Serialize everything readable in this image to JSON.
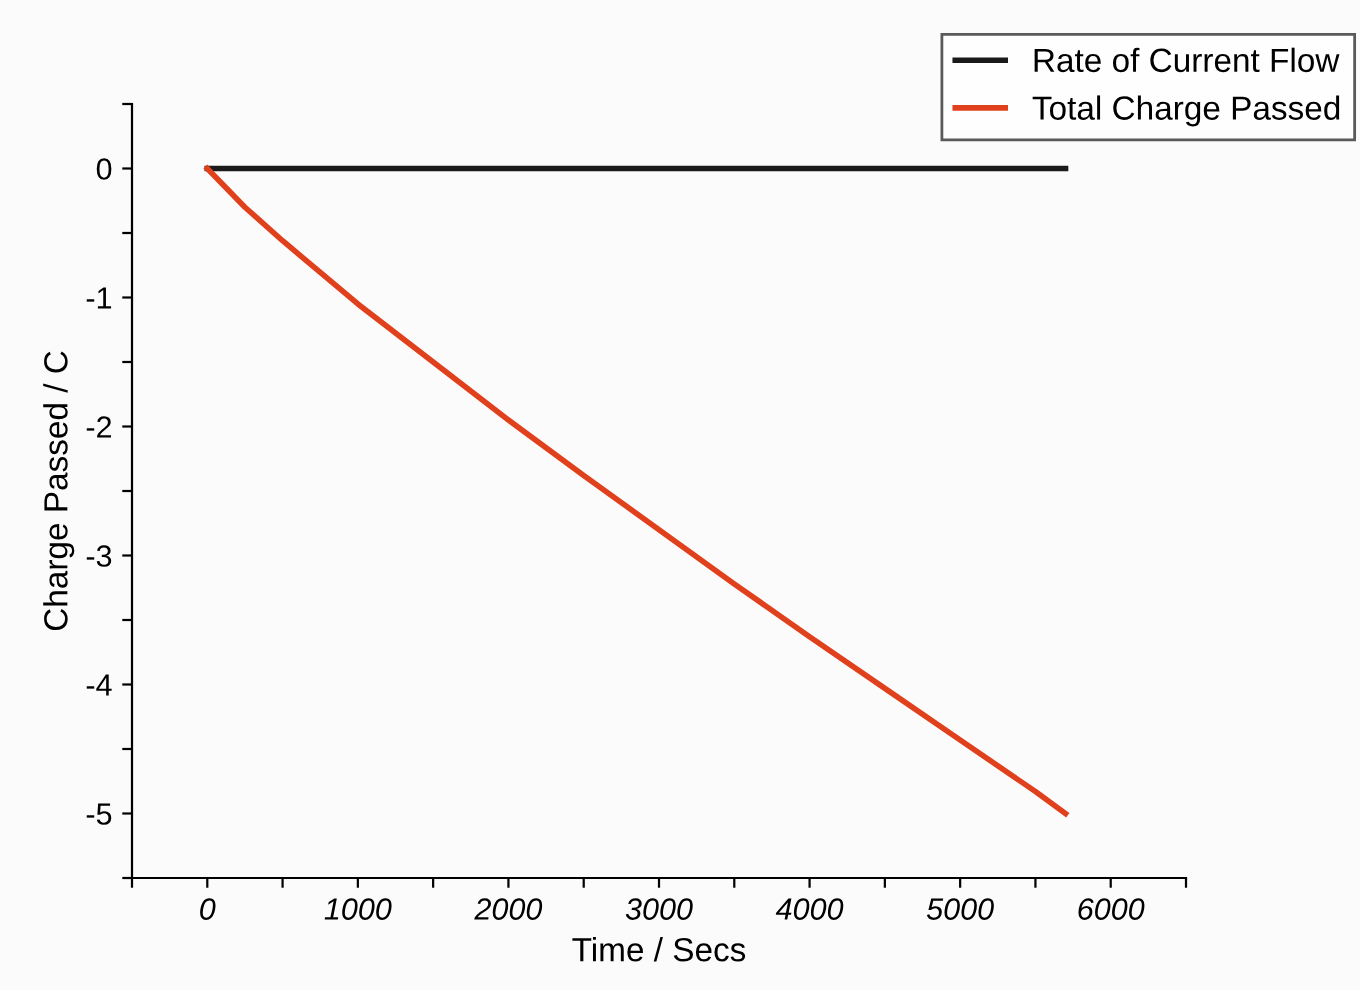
{
  "chart_data": {
    "type": "line",
    "xlabel": "Time / Secs",
    "ylabel": "Charge Passed / C",
    "xlim": [
      -500,
      6500
    ],
    "xticks": [
      {
        "value": -500,
        "label": null
      },
      0,
      {
        "value": 500,
        "label": null
      },
      1000,
      {
        "value": 1500,
        "label": null
      },
      2000,
      {
        "value": 2500,
        "label": null
      },
      3000,
      {
        "value": 3500,
        "label": null
      },
      4000,
      {
        "value": 4500,
        "label": null
      },
      5000,
      {
        "value": 5500,
        "label": null
      },
      6000,
      {
        "value": 6500,
        "label": null
      }
    ],
    "ylim": [
      -5.5,
      0.5
    ],
    "yticks": [
      {
        "value": -5.5,
        "label": null
      },
      -5,
      {
        "value": -4.5,
        "label": null
      },
      -4,
      {
        "value": -3.5,
        "label": null
      },
      -3,
      {
        "value": -2.5,
        "label": null
      },
      -2,
      {
        "value": -1.5,
        "label": null
      },
      -1,
      {
        "value": -0.5,
        "label": null
      },
      0,
      {
        "value": 0.5,
        "label": null
      }
    ],
    "legend": "top right",
    "grid": false,
    "series": [
      {
        "name": "Rate of Current Flow",
        "color": "#1a1a1a",
        "x": [
          0,
          1000,
          2000,
          3000,
          4000,
          5000,
          5700
        ],
        "values": [
          0,
          0,
          0,
          0,
          0,
          0,
          0
        ]
      },
      {
        "name": "Total Charge Passed",
        "color": "#e0401c",
        "x": [
          0,
          100,
          250,
          500,
          1000,
          1500,
          2000,
          2500,
          3000,
          3500,
          4000,
          4500,
          5000,
          5500,
          5700
        ],
        "values": [
          0,
          -0.12,
          -0.3,
          -0.56,
          -1.05,
          -1.5,
          -1.95,
          -2.38,
          -2.8,
          -3.22,
          -3.63,
          -4.03,
          -4.43,
          -4.83,
          -5.0
        ]
      }
    ]
  }
}
